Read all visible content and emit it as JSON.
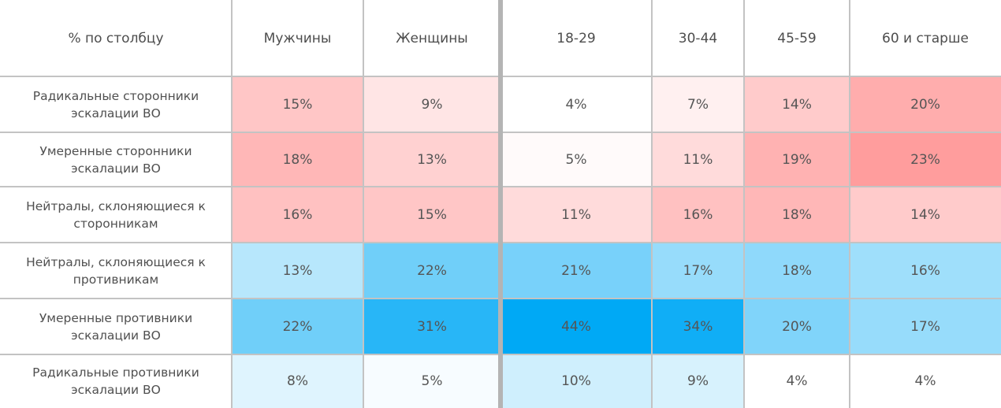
{
  "chart_data": {
    "type": "heatmap",
    "corner_label": "% по столбцу",
    "columns": [
      "Мужчины",
      "Женщины",
      "18-29",
      "30-44",
      "45-59",
      "60 и старше"
    ],
    "rows": [
      "Радикальные сторонники эскалации ВО",
      "Умеренные сторонники эскалации ВО",
      "Нейтралы, склоняющиеся к сторонникам",
      "Нейтралы, склоняющиеся к противникам",
      "Умеренные противники эскалации ВО",
      "Радикальные противники эскалации ВО"
    ],
    "values": [
      [
        15,
        9,
        4,
        7,
        14,
        20
      ],
      [
        18,
        13,
        5,
        11,
        19,
        23
      ],
      [
        16,
        15,
        11,
        16,
        18,
        14
      ],
      [
        13,
        22,
        21,
        17,
        18,
        16
      ],
      [
        22,
        31,
        44,
        34,
        20,
        17
      ],
      [
        8,
        5,
        10,
        9,
        4,
        4
      ]
    ],
    "value_format": "{v}%",
    "color_scheme": {
      "supporters_rows": [
        0,
        1,
        2
      ],
      "opponents_rows": [
        3,
        4,
        5
      ],
      "supporters_color": "#ff5a5a",
      "opponents_color": "#00a9f5"
    }
  }
}
